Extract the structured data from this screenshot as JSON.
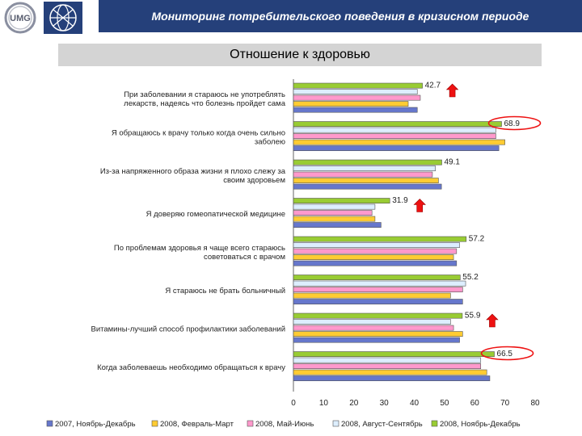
{
  "header": {
    "title": "Мониторинг потребительского поведения в кризисном периоде",
    "logo_text": "UMG",
    "logo_subtext": "UKRAINIAN MARKETING GROUP"
  },
  "chart_data": {
    "type": "bar",
    "orientation": "horizontal",
    "title": "Отношение к здоровью",
    "xlim": [
      0,
      80
    ],
    "xticks": [
      0,
      10,
      20,
      30,
      40,
      50,
      60,
      70,
      80
    ],
    "grid": false,
    "legend_position": "bottom",
    "categories": [
      "При заболевании я стараюсь не употреблять лекарств, надеясь что болезнь пройдет сама",
      "Я обращаюсь к врачу только когда очень сильно заболею",
      "Из-за напряженного образа жизни я плохо слежу за своим здоровьем",
      "Я доверяю гомеопатической медицине",
      "По проблемам здоровья я чаще всего стараюсь советоваться с врачом",
      "Я стараюсь не брать больничный",
      "Витамины-лучший способ профилактики заболеваний",
      "Когда заболеваешь необходимо обращаться к врачу"
    ],
    "series": [
      {
        "name": "2008, Ноябрь-Декабрь",
        "color": "#99cc33",
        "values": [
          42.7,
          68.9,
          49.1,
          31.9,
          57.2,
          55.2,
          55.9,
          66.5
        ]
      },
      {
        "name": "2008, Август-Сентябрь",
        "color": "#ddeeff",
        "values": [
          41,
          67,
          47,
          27,
          55,
          57,
          52,
          62
        ]
      },
      {
        "name": "2008, Май-Июнь",
        "color": "#ff99cc",
        "values": [
          42,
          67,
          46,
          26,
          54,
          56,
          53,
          62
        ]
      },
      {
        "name": "2008, Февраль-Март",
        "color": "#ffcc33",
        "values": [
          38,
          70,
          48,
          27,
          53,
          52,
          56,
          64
        ]
      },
      {
        "name": "2007, Ноябрь-Декабрь",
        "color": "#6677cc",
        "values": [
          41,
          68,
          49,
          29,
          54,
          56,
          55,
          65
        ]
      }
    ],
    "value_labels": [
      "42.7",
      "68.9",
      "49.1",
      "31.9",
      "57.2",
      "55.2",
      "55.9",
      "66.5"
    ],
    "arrows": {
      "color": "#ee1111",
      "up_at": [
        0,
        3,
        6
      ]
    },
    "circled_labels": {
      "color": "#ee1111",
      "at": [
        1,
        7
      ]
    }
  }
}
